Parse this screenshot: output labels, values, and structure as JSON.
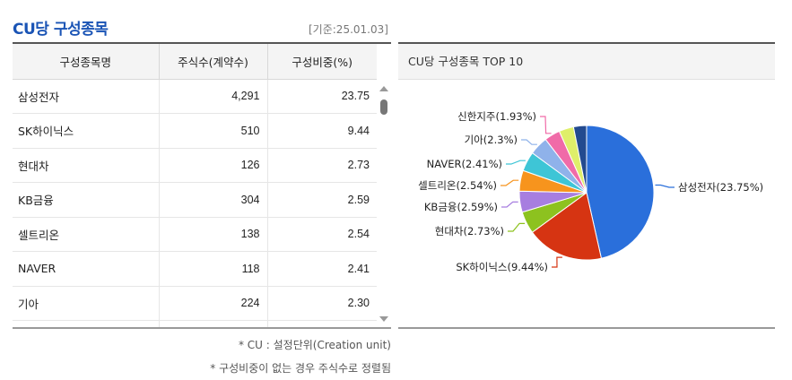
{
  "header": {
    "title": "CU당 구성종목",
    "basis_date": "[기준:25.01.03]"
  },
  "table": {
    "columns": [
      "구성종목명",
      "주식수(계약수)",
      "구성비중(%)"
    ],
    "rows": [
      {
        "name": "삼성전자",
        "shares": "4,291",
        "weight": "23.75"
      },
      {
        "name": "SK하이닉스",
        "shares": "510",
        "weight": "9.44"
      },
      {
        "name": "현대차",
        "shares": "126",
        "weight": "2.73"
      },
      {
        "name": "KB금융",
        "shares": "304",
        "weight": "2.59"
      },
      {
        "name": "셀트리온",
        "shares": "138",
        "weight": "2.54"
      },
      {
        "name": "NAVER",
        "shares": "118",
        "weight": "2.41"
      },
      {
        "name": "기아",
        "shares": "224",
        "weight": "2.30"
      },
      {
        "name": "",
        "shares": "",
        "weight": ""
      }
    ]
  },
  "notes": [
    "* CU : 설정단위(Creation unit)",
    "* 구성비중이 없는 경우 주식수로 정렬됨"
  ],
  "chart_panel": {
    "title": "CU당 구성종목 TOP 10"
  },
  "chart_data": {
    "type": "pie",
    "title": "CU당 구성종목 TOP 10",
    "slices": [
      {
        "label": "삼성전자(23.75%)",
        "value": 23.75,
        "color": "#2a6fdb"
      },
      {
        "label": "SK하이닉스(9.44%)",
        "value": 9.44,
        "color": "#d63412"
      },
      {
        "label": "현대차(2.73%)",
        "value": 2.73,
        "color": "#8dc21f"
      },
      {
        "label": "KB금융(2.59%)",
        "value": 2.59,
        "color": "#a77ee0"
      },
      {
        "label": "셀트리온(2.54%)",
        "value": 2.54,
        "color": "#f7941d"
      },
      {
        "label": "NAVER(2.41%)",
        "value": 2.41,
        "color": "#3ec5d6"
      },
      {
        "label": "기아(2.3%)",
        "value": 2.3,
        "color": "#8fb2ea"
      },
      {
        "label": "신한지주(1.93%)",
        "value": 1.93,
        "color": "#f06ba8"
      },
      {
        "label": "",
        "value": 1.8,
        "color": "#dfef6a"
      },
      {
        "label": "",
        "value": 1.6,
        "color": "#234a8f"
      }
    ]
  }
}
